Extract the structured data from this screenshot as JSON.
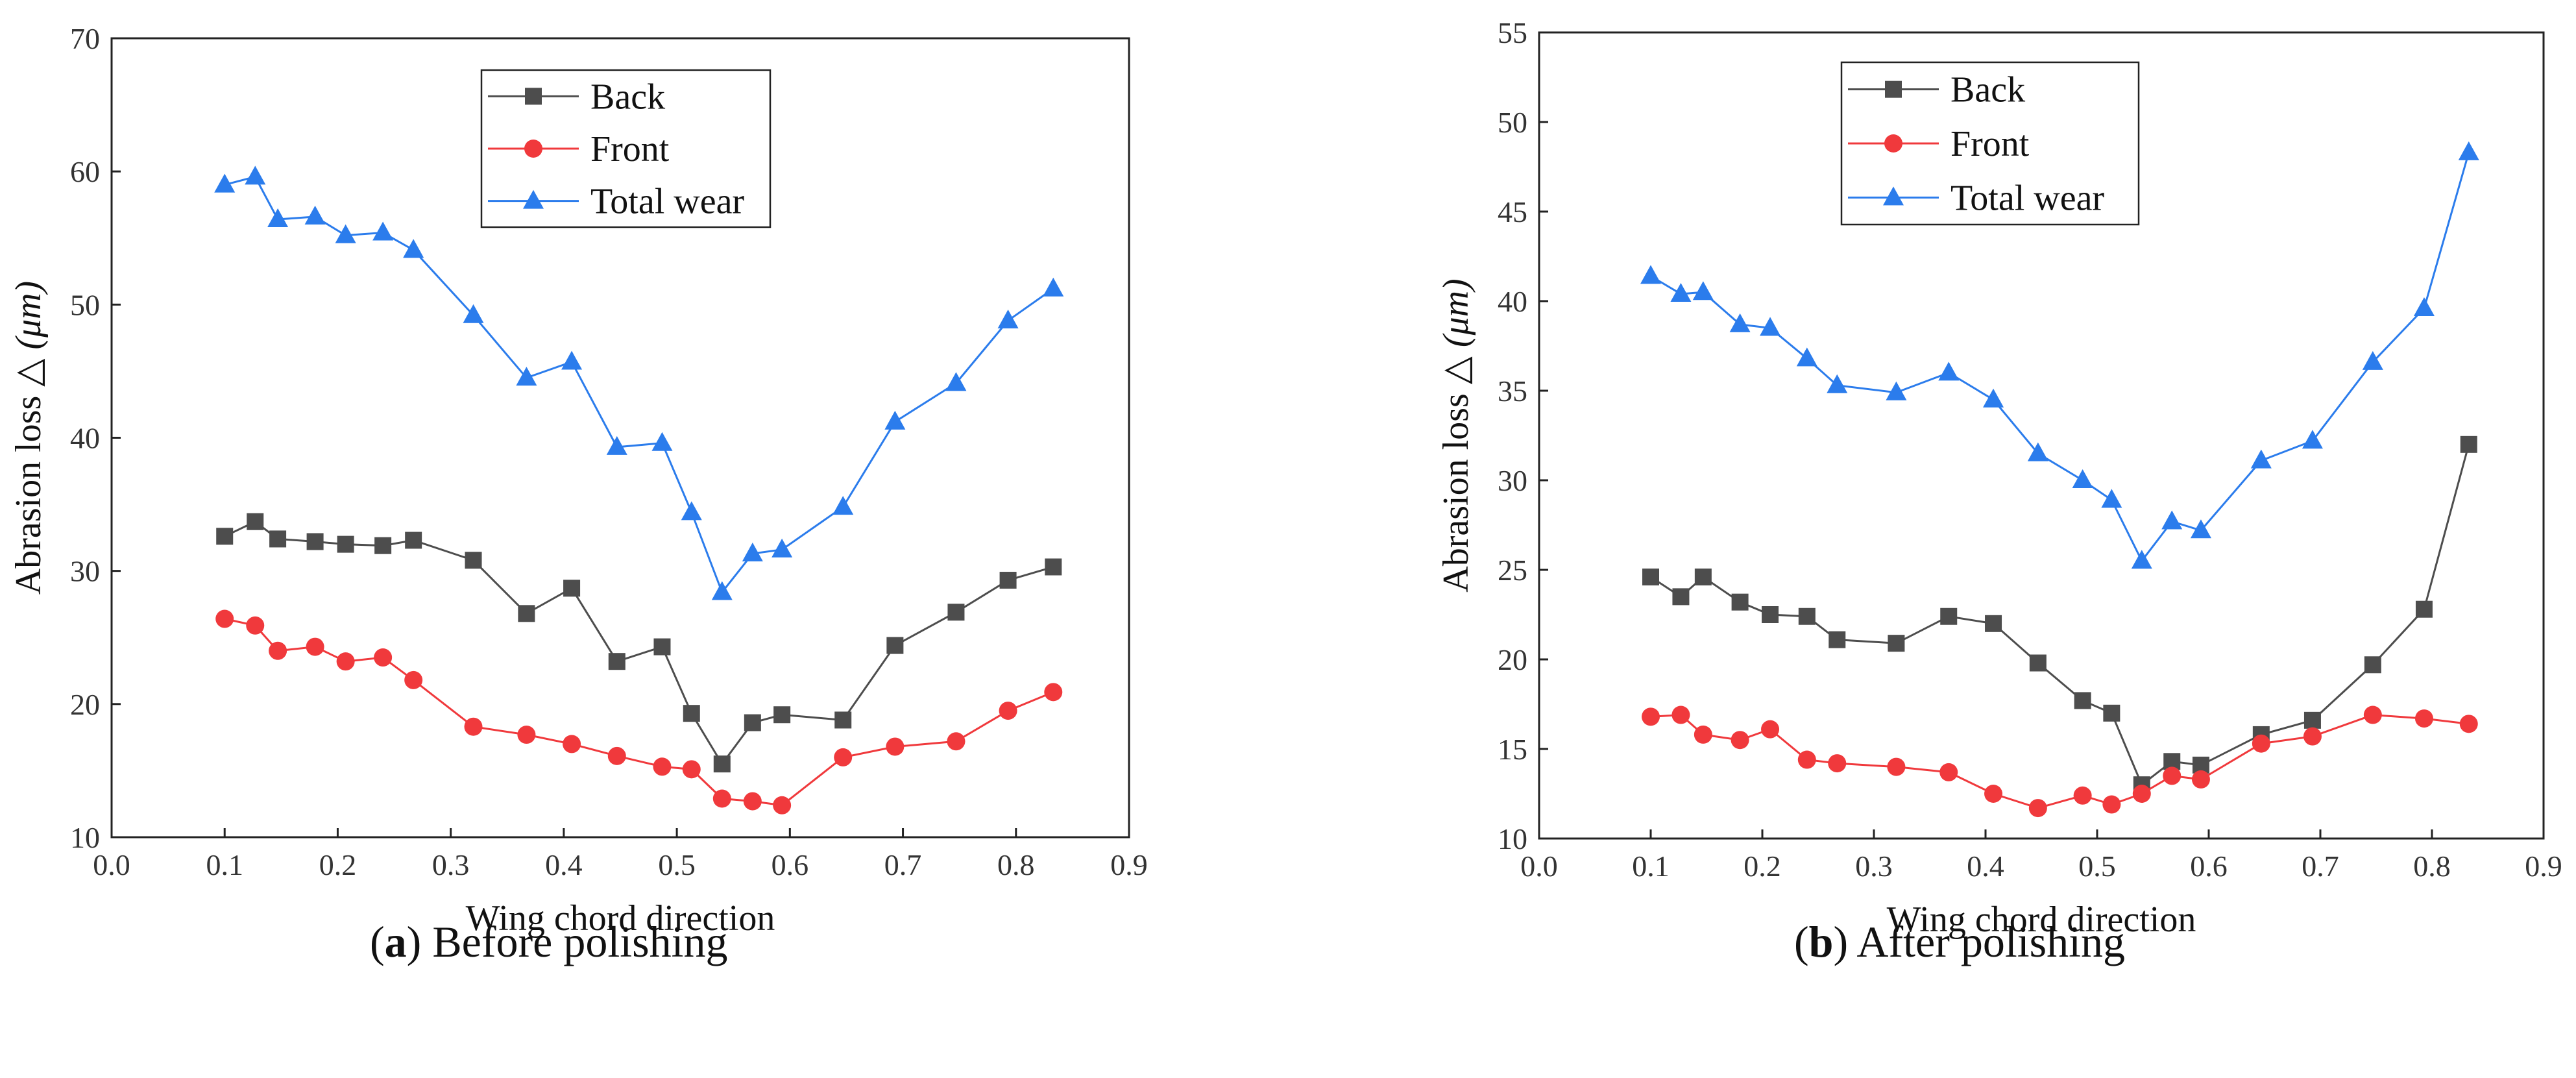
{
  "chart_data": [
    {
      "type": "line",
      "caption": {
        "letter": "a",
        "text": "Before polishing"
      },
      "xlabel": "Wing chord direction",
      "ylabel_main": "Abrasion loss △ ",
      "ylabel_unit": "(μm)",
      "xlim": [
        0.0,
        0.9
      ],
      "ylim": [
        10,
        70
      ],
      "x_ticks": [
        0.0,
        0.1,
        0.2,
        0.3,
        0.4,
        0.5,
        0.6,
        0.7,
        0.8,
        0.9
      ],
      "x_tick_labels": [
        "0.0",
        "0.1",
        "0.2",
        "0.3",
        "0.4",
        "0.5",
        "0.6",
        "0.7",
        "0.8",
        "0.9"
      ],
      "y_ticks": [
        10,
        20,
        30,
        40,
        50,
        60,
        70
      ],
      "y_tick_labels": [
        "10",
        "20",
        "30",
        "40",
        "50",
        "60",
        "70"
      ],
      "grid": false,
      "legend_position": "top-center",
      "x": [
        0.1,
        0.127,
        0.147,
        0.18,
        0.207,
        0.24,
        0.267,
        0.32,
        0.367,
        0.407,
        0.447,
        0.487,
        0.513,
        0.54,
        0.567,
        0.593,
        0.647,
        0.693,
        0.747,
        0.793,
        0.833
      ],
      "series": [
        {
          "name": "Back",
          "color": "#4d4d4d",
          "marker": "square",
          "values": [
            32.6,
            33.7,
            32.4,
            32.2,
            32.0,
            31.9,
            32.3,
            30.8,
            26.8,
            28.7,
            23.2,
            24.3,
            19.3,
            15.5,
            18.6,
            19.2,
            18.8,
            24.4,
            26.9,
            29.3,
            30.3
          ]
        },
        {
          "name": "Front",
          "color": "#f0393c",
          "marker": "circle",
          "values": [
            26.4,
            25.9,
            24.0,
            24.3,
            23.2,
            23.5,
            21.8,
            18.3,
            17.7,
            17.0,
            16.1,
            15.3,
            15.1,
            12.9,
            12.7,
            12.4,
            16.0,
            16.8,
            17.2,
            19.5,
            20.9
          ]
        },
        {
          "name": "Total wear",
          "color": "#2b7cec",
          "marker": "triangle",
          "values": [
            59.0,
            59.6,
            56.4,
            56.6,
            55.2,
            55.4,
            54.1,
            49.2,
            44.5,
            45.7,
            39.3,
            39.6,
            34.4,
            28.4,
            31.3,
            31.6,
            34.8,
            41.2,
            44.1,
            48.8,
            51.2
          ]
        }
      ]
    },
    {
      "type": "line",
      "caption": {
        "letter": "b",
        "text": "After polishing"
      },
      "xlabel": "Wing chord direction",
      "ylabel_main": "Abrasion loss △ ",
      "ylabel_unit": "(μm)",
      "xlim": [
        0.0,
        0.9
      ],
      "ylim": [
        10,
        55
      ],
      "x_ticks": [
        0.0,
        0.1,
        0.2,
        0.3,
        0.4,
        0.5,
        0.6,
        0.7,
        0.8,
        0.9
      ],
      "x_tick_labels": [
        "0.0",
        "0.1",
        "0.2",
        "0.3",
        "0.4",
        "0.5",
        "0.6",
        "0.7",
        "0.8",
        "0.9"
      ],
      "y_ticks": [
        10,
        15,
        20,
        25,
        30,
        35,
        40,
        45,
        50,
        55
      ],
      "y_tick_labels": [
        "10",
        "15",
        "20",
        "25",
        "30",
        "35",
        "40",
        "45",
        "50",
        "55"
      ],
      "grid": false,
      "legend_position": "top-center",
      "x": [
        0.1,
        0.127,
        0.147,
        0.18,
        0.207,
        0.24,
        0.267,
        0.32,
        0.367,
        0.407,
        0.447,
        0.487,
        0.513,
        0.54,
        0.567,
        0.593,
        0.647,
        0.693,
        0.747,
        0.793,
        0.833
      ],
      "series": [
        {
          "name": "Back",
          "color": "#4d4d4d",
          "marker": "square",
          "values": [
            24.6,
            23.5,
            24.6,
            23.2,
            22.5,
            22.4,
            21.1,
            20.9,
            22.4,
            22.0,
            19.8,
            17.7,
            17.0,
            13.0,
            14.3,
            14.1,
            15.8,
            16.6,
            19.7,
            22.8,
            32.0
          ]
        },
        {
          "name": "Front",
          "color": "#f0393c",
          "marker": "circle",
          "values": [
            16.8,
            16.9,
            15.8,
            15.5,
            16.1,
            14.4,
            14.2,
            14.0,
            13.7,
            12.5,
            11.7,
            12.4,
            11.9,
            12.5,
            13.5,
            13.3,
            15.3,
            15.7,
            16.9,
            16.7,
            16.4
          ]
        },
        {
          "name": "Total wear",
          "color": "#2b7cec",
          "marker": "triangle",
          "values": [
            41.4,
            40.4,
            40.5,
            38.7,
            38.5,
            36.8,
            35.3,
            34.9,
            36.0,
            34.5,
            31.5,
            30.0,
            28.9,
            25.5,
            27.7,
            27.2,
            31.1,
            32.2,
            36.6,
            39.6,
            48.3
          ]
        }
      ]
    }
  ]
}
